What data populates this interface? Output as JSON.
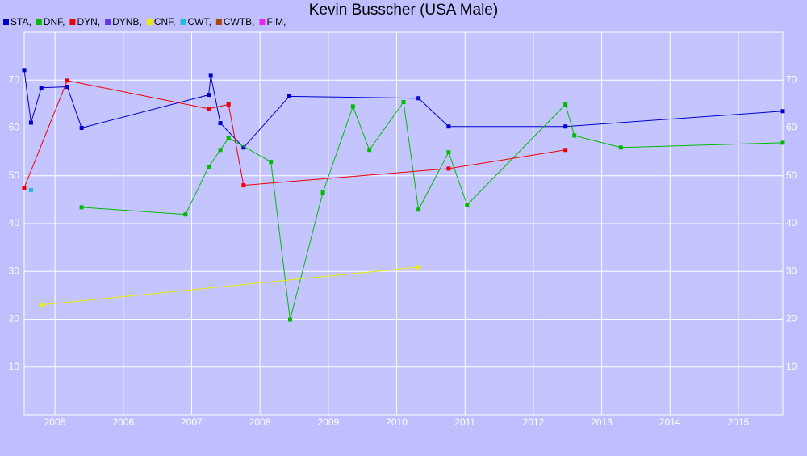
{
  "chart_data": {
    "type": "line",
    "title": "Kevin Busscher (USA Male)",
    "xlim": [
      2004.55,
      2015.65
    ],
    "xticks": [
      2005,
      2006,
      2007,
      2008,
      2009,
      2010,
      2011,
      2012,
      2013,
      2014,
      2015
    ],
    "ylim": [
      0,
      80
    ],
    "yticks": [
      10,
      20,
      30,
      40,
      50,
      60,
      70
    ],
    "grid": true,
    "series": [
      {
        "name": "STA,",
        "color": "#0000cc",
        "x": [
          2004.55,
          2004.65,
          2004.8,
          2005.18,
          2005.39,
          2007.25,
          2007.28,
          2007.42,
          2007.76,
          2008.43,
          2010.32,
          2010.76,
          2012.47,
          2015.65
        ],
        "values": [
          72.1,
          61.1,
          68.4,
          68.6,
          60.0,
          66.9,
          70.9,
          61.0,
          55.9,
          66.6,
          66.2,
          60.3,
          60.3,
          63.5
        ]
      },
      {
        "name": "DNF,",
        "color": "#00bb00",
        "x": [
          2005.39,
          2006.91,
          2007.25,
          2007.42,
          2007.54,
          2008.16,
          2008.44,
          2008.92,
          2009.36,
          2009.6,
          2010.1,
          2010.32,
          2010.76,
          2011.03,
          2012.47,
          2012.6,
          2013.28,
          2015.65
        ],
        "values": [
          43.4,
          41.9,
          51.9,
          55.4,
          57.9,
          52.9,
          19.9,
          46.5,
          64.5,
          55.4,
          65.4,
          42.9,
          54.9,
          43.9,
          64.9,
          58.4,
          55.9,
          56.9
        ]
      },
      {
        "name": "DYN,",
        "color": "#ee0000",
        "x": [
          2004.55,
          2005.18,
          2007.25,
          2007.54,
          2007.76,
          2010.76,
          2012.47
        ],
        "values": [
          47.5,
          69.9,
          64.0,
          64.9,
          48.0,
          51.5,
          55.4
        ]
      },
      {
        "name": "DYNB,",
        "color": "#6633ee",
        "x": [],
        "values": []
      },
      {
        "name": "CNF,",
        "color": "#eeee00",
        "x": [
          2004.8,
          2010.32
        ],
        "values": [
          23.0,
          30.9
        ]
      },
      {
        "name": "CWT,",
        "color": "#22bbdd",
        "x": [
          2004.65
        ],
        "values": [
          47.0
        ]
      },
      {
        "name": "CWTB,",
        "color": "#aa4400",
        "x": [],
        "values": []
      },
      {
        "name": "FIM,",
        "color": "#ee22ee",
        "x": [],
        "values": []
      }
    ]
  }
}
